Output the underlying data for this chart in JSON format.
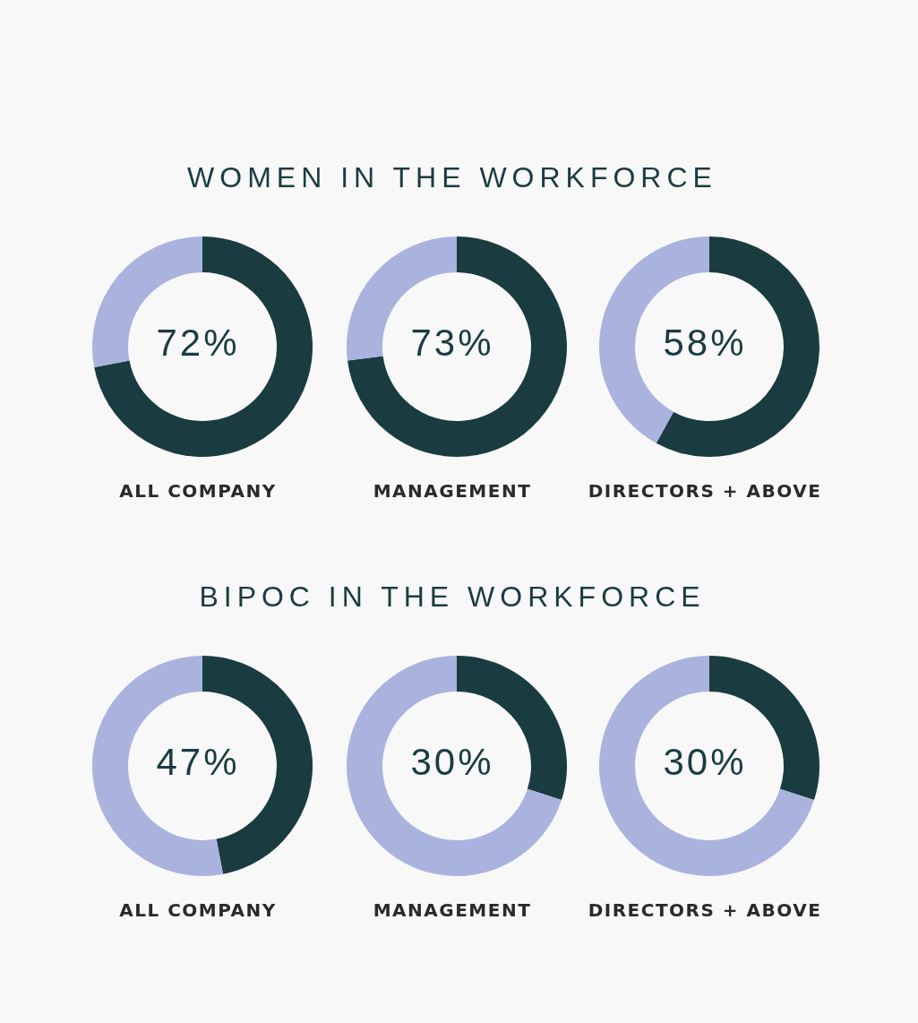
{
  "chart_data": [
    {
      "type": "donut",
      "title": "WOMEN IN THE WORKFORCE",
      "xlabel": "ALL COMPANY",
      "categories": [
        null,
        null
      ],
      "values": [
        72,
        28
      ],
      "colors": [
        "#1a3c40",
        "#a9b3de"
      ],
      "annotations": [
        "72%"
      ]
    },
    {
      "type": "donut",
      "xlabel": "MANAGEMENT",
      "categories": [
        null,
        null
      ],
      "values": [
        73,
        27
      ],
      "colors": [
        "#1a3c40",
        "#a9b3de"
      ],
      "annotations": [
        "73%"
      ]
    },
    {
      "type": "donut",
      "xlabel": "DIRECTORS + ABOVE",
      "categories": [
        null,
        null
      ],
      "values": [
        58,
        42
      ],
      "colors": [
        "#1a3c40",
        "#a9b3de"
      ],
      "annotations": [
        "58%"
      ]
    },
    {
      "type": "donut",
      "title": "BIPOC IN THE WORKFORCE",
      "xlabel": "ALL COMPANY",
      "categories": [
        null,
        null
      ],
      "values": [
        47,
        53
      ],
      "colors": [
        "#1a3c40",
        "#a9b3de"
      ],
      "annotations": [
        "47%"
      ]
    },
    {
      "type": "donut",
      "xlabel": "MANAGEMENT",
      "categories": [
        null,
        null
      ],
      "values": [
        30,
        70
      ],
      "colors": [
        "#1a3c40",
        "#a9b3de"
      ],
      "annotations": [
        "30%"
      ]
    },
    {
      "type": "donut",
      "xlabel": "DIRECTORS + ABOVE",
      "categories": [
        null,
        null
      ],
      "values": [
        30,
        70
      ],
      "colors": [
        "#1a3c40",
        "#a9b3de"
      ],
      "annotations": [
        "30%"
      ]
    }
  ]
}
